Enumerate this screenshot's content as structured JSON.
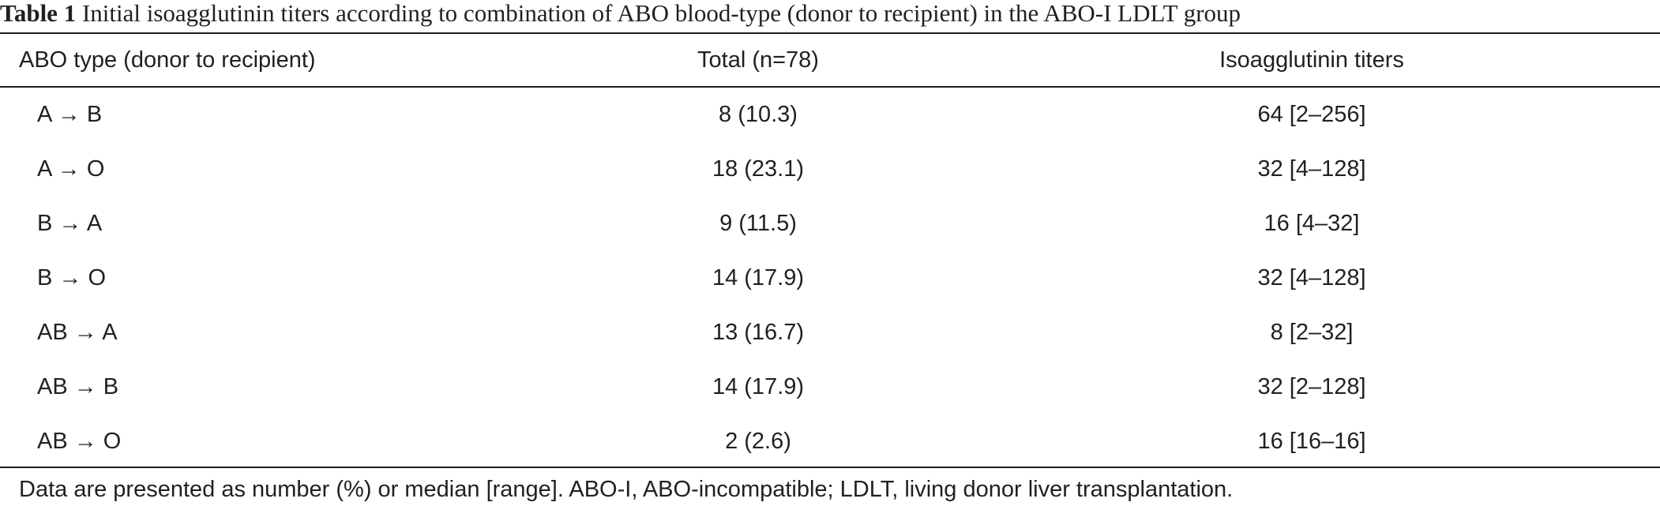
{
  "caption": {
    "label": "Table 1",
    "text": "Initial isoagglutinin titers according to combination of ABO blood-type (donor to recipient) in the ABO-I LDLT group"
  },
  "table": {
    "headers": [
      "ABO type (donor to recipient)",
      "Total (n=78)",
      "Isoagglutinin titers"
    ],
    "rows": [
      {
        "type": "A → B",
        "total": "8 (10.3)",
        "titers": "64 [2–256]"
      },
      {
        "type": "A → O",
        "total": "18 (23.1)",
        "titers": "32 [4–128]"
      },
      {
        "type": "B → A",
        "total": "9 (11.5)",
        "titers": "16 [4–32]"
      },
      {
        "type": "B → O",
        "total": "14 (17.9)",
        "titers": "32 [4–128]"
      },
      {
        "type": "AB → A",
        "total": "13 (16.7)",
        "titers": "8 [2–32]"
      },
      {
        "type": "AB → B",
        "total": "14 (17.9)",
        "titers": "32 [2–128]"
      },
      {
        "type": "AB → O",
        "total": "2 (2.6)",
        "titers": "16 [16–16]"
      }
    ]
  },
  "footnote": "Data are presented as number (%) or median [range]. ABO-I, ABO-incompatible; LDLT, living donor liver transplantation."
}
